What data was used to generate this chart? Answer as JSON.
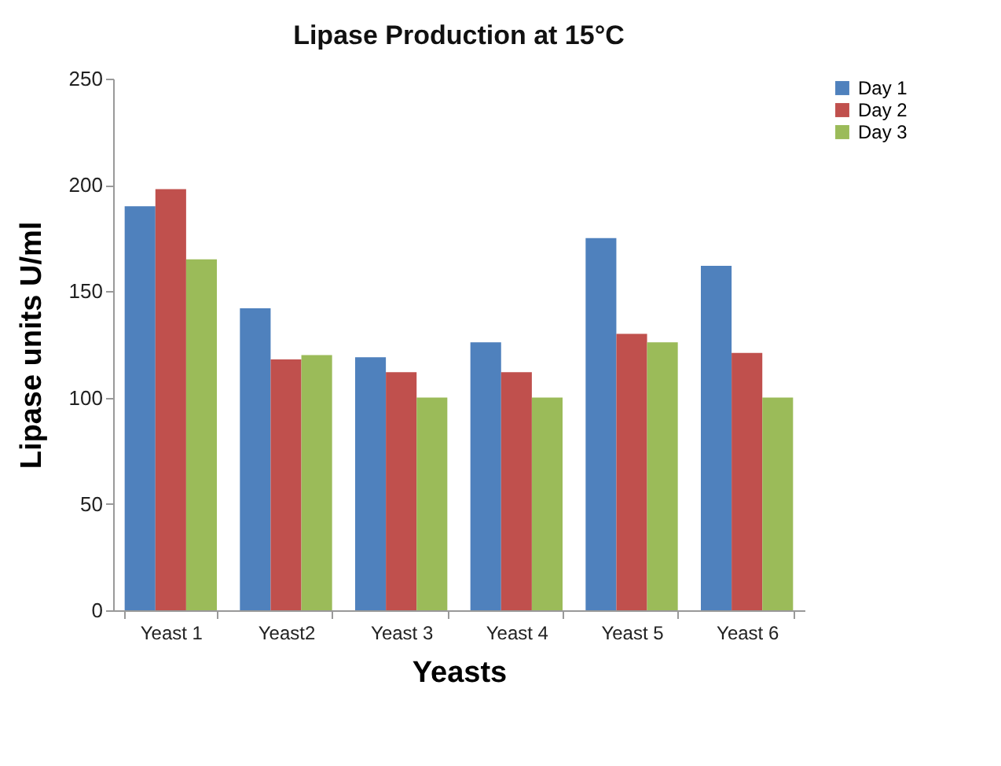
{
  "chart_data": {
    "type": "bar",
    "title": "Lipase Production at 15°C",
    "xlabel": "Yeasts",
    "ylabel": "Lipase units U/ml",
    "categories": [
      "Yeast 1",
      "Yeast2",
      "Yeast 3",
      "Yeast 4",
      "Yeast 5",
      "Yeast 6"
    ],
    "series": [
      {
        "name": "Day 1",
        "color": "#4f81bd",
        "values": [
          190,
          142,
          119,
          126,
          175,
          162
        ]
      },
      {
        "name": "Day 2",
        "color": "#c0504d",
        "values": [
          198,
          118,
          112,
          112,
          130,
          121
        ]
      },
      {
        "name": "Day 3",
        "color": "#9bbb59",
        "values": [
          165,
          120,
          100,
          100,
          126,
          100
        ]
      }
    ],
    "ylim": [
      0,
      250
    ],
    "yticks": [
      0,
      50,
      100,
      150,
      200,
      250
    ],
    "grid": false,
    "legend": "right"
  }
}
